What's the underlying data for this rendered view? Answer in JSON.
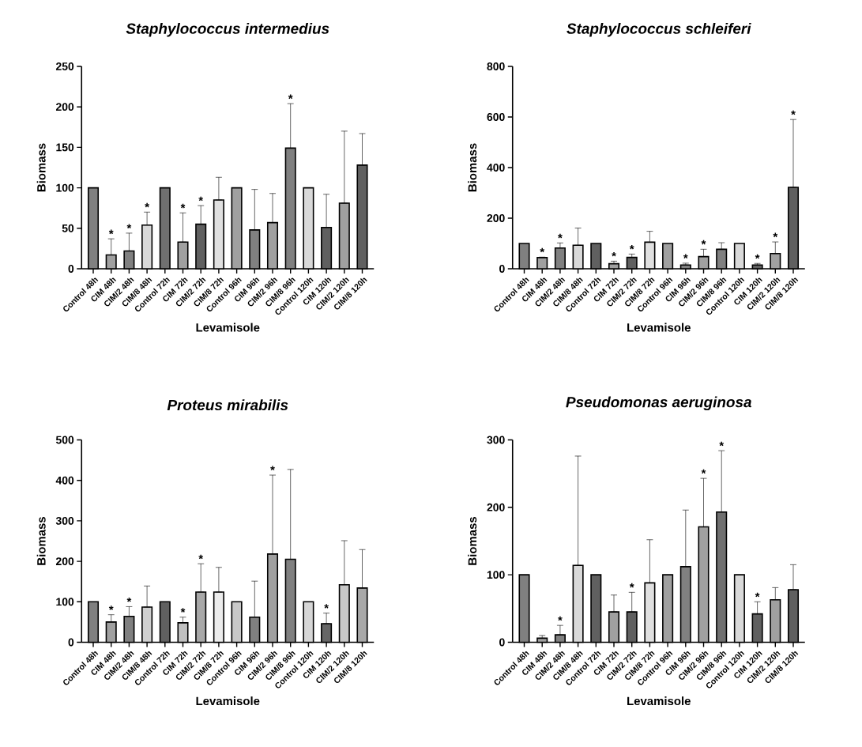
{
  "chart_data": [
    {
      "type": "bar",
      "title": "Staphylococcus intermedius",
      "xlabel": "Levamisole",
      "ylabel": "Biomass",
      "categories": [
        "Control 48h",
        "CIM 48h",
        "CIM/2 48h",
        "CIM/8 48h",
        "Control 72h",
        "CIM 72h",
        "CIM/2 72h",
        "CIM/8 72h",
        "Control 96h",
        "CIM 96h",
        "CIM/2 96h",
        "CIM/8 96h",
        "Control 120h",
        "CIM 120h",
        "CIM/2 120h",
        "CIM/8 120h"
      ],
      "values": [
        100,
        17,
        22,
        54,
        100,
        33,
        55,
        85,
        100,
        48,
        57,
        149,
        100,
        51,
        81,
        128
      ],
      "errors": [
        null,
        [
          17,
          37
        ],
        [
          22,
          44
        ],
        [
          54,
          70
        ],
        null,
        [
          33,
          69
        ],
        [
          55,
          78
        ],
        [
          85,
          113
        ],
        null,
        [
          48,
          98
        ],
        [
          57,
          93
        ],
        [
          149,
          204
        ],
        null,
        [
          51,
          92
        ],
        [
          81,
          170
        ],
        [
          128,
          167
        ]
      ],
      "colors": [
        "#808080",
        "#a0a0a0",
        "#808080",
        "#d9d9d9",
        "#707070",
        "#a0a0a0",
        "#606060",
        "#e0e0e0",
        "#a0a0a0",
        "#808080",
        "#a0a0a0",
        "#808080",
        "#d9d9d9",
        "#606060",
        "#a0a0a0",
        "#606060"
      ],
      "ylim": [
        0,
        250
      ],
      "yticks": [
        0,
        50,
        100,
        150,
        200,
        250
      ],
      "annotations": [
        {
          "text": "*",
          "x": "CIM 48h",
          "y": 37
        },
        {
          "text": "*",
          "x": "CIM/2 48h",
          "y": 44
        },
        {
          "text": "*",
          "x": "CIM/8 48h",
          "y": 70
        },
        {
          "text": "*",
          "x": "CIM 72h",
          "y": 69
        },
        {
          "text": "*",
          "x": "CIM/2 72h",
          "y": 78
        },
        {
          "text": "*",
          "x": "CIM/8 96h",
          "y": 204
        }
      ]
    },
    {
      "type": "bar",
      "title": "Staphylococcus schleiferi",
      "xlabel": "Levamisole",
      "ylabel": "Biomass",
      "categories": [
        "Control 48h",
        "CIM 48h",
        "CIM/2 48h",
        "CIM/8 48h",
        "Control 72h",
        "CIM 72h",
        "CIM/2 72h",
        "CIM/8 72h",
        "Control 96h",
        "CIM 96h",
        "CIM/2 96h",
        "CIM/8 96h",
        "Control 120h",
        "CIM 120h",
        "CIM/2 120h",
        "CIM/8 120h"
      ],
      "values": [
        100,
        44,
        82,
        93,
        100,
        20,
        45,
        105,
        100,
        15,
        48,
        77,
        100,
        15,
        60,
        322
      ],
      "errors": [
        null,
        [
          44,
          46
        ],
        [
          82,
          102
        ],
        [
          93,
          161
        ],
        null,
        [
          20,
          30
        ],
        [
          45,
          58
        ],
        [
          105,
          148
        ],
        null,
        [
          15,
          22
        ],
        [
          48,
          77
        ],
        [
          77,
          103
        ],
        null,
        [
          15,
          21
        ],
        [
          60,
          106
        ],
        [
          322,
          590
        ]
      ],
      "colors": [
        "#808080",
        "#a0a0a0",
        "#808080",
        "#d9d9d9",
        "#606060",
        "#a0a0a0",
        "#606060",
        "#e0e0e0",
        "#a0a0a0",
        "#808080",
        "#a0a0a0",
        "#808080",
        "#d9d9d9",
        "#606060",
        "#a0a0a0",
        "#606060"
      ],
      "ylim": [
        0,
        800
      ],
      "yticks": [
        0,
        200,
        400,
        600,
        800
      ],
      "annotations": [
        {
          "text": "*",
          "x": "CIM 48h",
          "y": 46
        },
        {
          "text": "*",
          "x": "CIM/2 48h",
          "y": 102
        },
        {
          "text": "*",
          "x": "CIM 72h",
          "y": 30
        },
        {
          "text": "*",
          "x": "CIM/2 72h",
          "y": 58
        },
        {
          "text": "*",
          "x": "CIM 96h",
          "y": 22
        },
        {
          "text": "*",
          "x": "CIM/2 96h",
          "y": 77
        },
        {
          "text": "*",
          "x": "CIM 120h",
          "y": 21
        },
        {
          "text": "*",
          "x": "CIM/2 120h",
          "y": 106
        },
        {
          "text": "*",
          "x": "CIM/8 120h",
          "y": 590
        }
      ]
    },
    {
      "type": "bar",
      "title": "Proteus mirabilis",
      "xlabel": "Levamisole",
      "ylabel": "Biomass",
      "categories": [
        "Control 48h",
        "CIM 48h",
        "CIM/2 48h",
        "CIM/8 48h",
        "Control 72h",
        "CIM 72h",
        "CIM/2 72h",
        "CIM/8 72h",
        "Control 96h",
        "CIM 96h",
        "CIM/2 96h",
        "CIM/8 96h",
        "Control 120h",
        "CIM 120h",
        "CIM/2 120h",
        "CIM/8 120h"
      ],
      "values": [
        100,
        50,
        64,
        87,
        100,
        48,
        124,
        124,
        100,
        62,
        218,
        205,
        100,
        46,
        142,
        134
      ],
      "errors": [
        null,
        [
          50,
          68
        ],
        [
          64,
          88
        ],
        [
          87,
          139
        ],
        null,
        [
          48,
          62
        ],
        [
          124,
          194
        ],
        [
          124,
          185
        ],
        null,
        [
          62,
          151
        ],
        [
          218,
          413
        ],
        [
          205,
          427
        ],
        null,
        [
          46,
          72
        ],
        [
          142,
          251
        ],
        [
          134,
          229
        ]
      ],
      "colors": [
        "#808080",
        "#a0a0a0",
        "#808080",
        "#d0d0d0",
        "#606060",
        "#c0c0c0",
        "#a8a8a8",
        "#ececec",
        "#c8c8c8",
        "#808080",
        "#a0a0a0",
        "#808080",
        "#d6d6d6",
        "#666666",
        "#c8c8c8",
        "#a8a8a8"
      ],
      "ylim": [
        0,
        500
      ],
      "yticks": [
        0,
        100,
        200,
        300,
        400,
        500
      ],
      "annotations": [
        {
          "text": "*",
          "x": "CIM 48h",
          "y": 68
        },
        {
          "text": "*",
          "x": "CIM/2 48h",
          "y": 88
        },
        {
          "text": "*",
          "x": "CIM 72h",
          "y": 62
        },
        {
          "text": "*",
          "x": "CIM/2 72h",
          "y": 194
        },
        {
          "text": "*",
          "x": "CIM/2 96h",
          "y": 413
        },
        {
          "text": "*",
          "x": "CIM 120h",
          "y": 72
        }
      ]
    },
    {
      "type": "bar",
      "title": "Pseudomonas aeruginosa",
      "xlabel": "Levamisole",
      "ylabel": "Biomass",
      "categories": [
        "Control 48h",
        "CIM 48h",
        "CIM/2 48h",
        "CIM/8 48h",
        "Control 72h",
        "CIM 72h",
        "CIM/2 72h",
        "CIM/8 72h",
        "Control 96h",
        "CIM 96h",
        "CIM/2 96h",
        "CIM/8 96h",
        "Control 120h",
        "CIM 120h",
        "CIM/2 120h",
        "CIM/8 120h"
      ],
      "values": [
        100,
        6,
        11,
        114,
        100,
        45,
        45,
        88,
        100,
        112,
        171,
        193,
        100,
        42,
        63,
        78
      ],
      "errors": [
        null,
        [
          6,
          10
        ],
        [
          11,
          25
        ],
        [
          114,
          276
        ],
        null,
        [
          45,
          70
        ],
        [
          45,
          74
        ],
        [
          88,
          152
        ],
        null,
        [
          112,
          196
        ],
        [
          171,
          243
        ],
        [
          193,
          284
        ],
        null,
        [
          42,
          60
        ],
        [
          63,
          81
        ],
        [
          78,
          115
        ]
      ],
      "colors": [
        "#808080",
        "#a0a0a0",
        "#808080",
        "#d9d9d9",
        "#606060",
        "#a0a0a0",
        "#606060",
        "#e0e0e0",
        "#a0a0a0",
        "#808080",
        "#a0a0a0",
        "#707070",
        "#d9d9d9",
        "#606060",
        "#a0a0a0",
        "#606060"
      ],
      "ylim": [
        0,
        300
      ],
      "yticks": [
        0,
        100,
        200,
        300
      ],
      "annotations": [
        {
          "text": "*",
          "x": "CIM/2 48h",
          "y": 25
        },
        {
          "text": "*",
          "x": "CIM/2 72h",
          "y": 74
        },
        {
          "text": "*",
          "x": "CIM/2 96h",
          "y": 243
        },
        {
          "text": "*",
          "x": "CIM/8 96h",
          "y": 284
        },
        {
          "text": "*",
          "x": "CIM 120h",
          "y": 60
        }
      ]
    }
  ]
}
